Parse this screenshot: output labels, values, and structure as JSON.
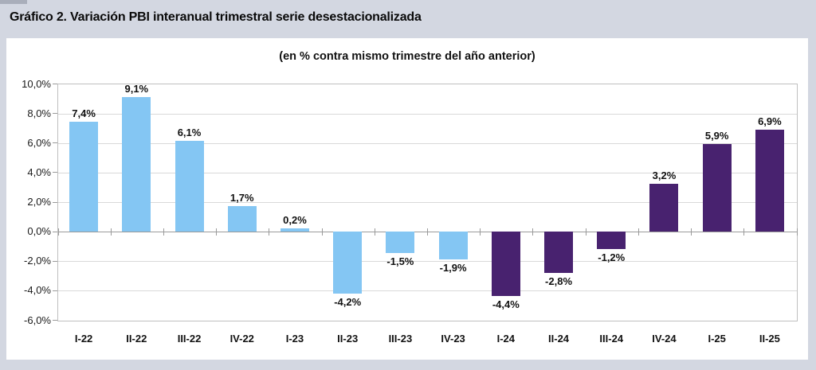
{
  "page": {
    "title": "Gráfico 2. Variación PBI interanual trimestral serie desestacionalizada",
    "background_color": "#d3d7e1"
  },
  "chart_data": {
    "type": "bar",
    "title": "(en % contra mismo trimestre del año anterior)",
    "categories": [
      "I-22",
      "II-22",
      "III-22",
      "IV-22",
      "I-23",
      "II-23",
      "III-23",
      "IV-23",
      "I-24",
      "II-24",
      "III-24",
      "IV-24",
      "I-25",
      "II-25"
    ],
    "values": [
      7.4,
      9.1,
      6.1,
      1.7,
      0.2,
      -4.2,
      -1.5,
      -1.9,
      -4.4,
      -2.8,
      -1.2,
      3.2,
      5.9,
      6.9
    ],
    "value_labels": [
      "7,4%",
      "9,1%",
      "6,1%",
      "1,7%",
      "0,2%",
      "-4,2%",
      "-1,5%",
      "-1,9%",
      "-4,4%",
      "-2,8%",
      "-1,2%",
      "3,2%",
      "5,9%",
      "6,9%"
    ],
    "bar_color_groups": [
      "blue",
      "blue",
      "blue",
      "blue",
      "blue",
      "blue",
      "blue",
      "blue",
      "purple",
      "purple",
      "purple",
      "purple",
      "purple",
      "purple"
    ],
    "color_map": {
      "blue": "#84c6f3",
      "purple": "#48226f"
    },
    "xlabel": "",
    "ylabel": "",
    "ylim": [
      -6,
      10
    ],
    "ytick_step": 2,
    "ytick_labels": [
      "10,0%",
      "8,0%",
      "6,0%",
      "4,0%",
      "2,0%",
      "0,0%",
      "-2,0%",
      "-4,0%",
      "-6,0%"
    ],
    "grid": true,
    "legend": false
  }
}
